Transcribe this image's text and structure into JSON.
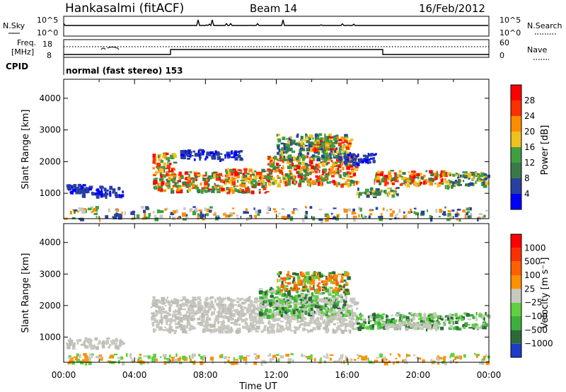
{
  "header": {
    "station": "Hankasalmi (fitACF)",
    "beam": "Beam 14",
    "date": "16/Feb/2012"
  },
  "strip": {
    "nsky_label": "N.Sky",
    "nsearch_label": "N.Search",
    "nsky_ticks": [
      "10^5",
      "10^0"
    ],
    "nsearch_ticks": [
      "10^5",
      "10^0"
    ],
    "freq_label_1": "Freq.",
    "freq_label_2": "[MHz]",
    "freq_ticks": [
      "18",
      "8"
    ],
    "nave_ticks": [
      "60",
      "0"
    ],
    "nave_label": "Nave",
    "cpid_label": "CPID",
    "cpid_text": "normal (fast stereo) 153"
  },
  "chart_data": [
    {
      "type": "heatmap",
      "name": "power",
      "ylabel": "Slant Range [km]",
      "xlabel": "",
      "ylim": [
        200,
        4600
      ],
      "yticks": [
        "1000",
        "2000",
        "3000",
        "4000"
      ],
      "colorbar": {
        "label": "Power [dB]",
        "ticks": [
          "4",
          "8",
          "12",
          "16",
          "20",
          "24",
          "28"
        ],
        "colors": [
          "#0000ff",
          "#2840a0",
          "#3a7a4a",
          "#40a040",
          "#f0c020",
          "#ff8c00",
          "#ff3000",
          "#ff0000"
        ]
      },
      "bands": [
        {
          "x0": 0.1,
          "x1": 1.2,
          "y0": 1050,
          "y1": 1300,
          "level": "low"
        },
        {
          "x0": 1.0,
          "x1": 3.3,
          "y0": 950,
          "y1": 1250,
          "level": "low"
        },
        {
          "x0": 5.0,
          "x1": 6.2,
          "y0": 1100,
          "y1": 2300,
          "level": "high"
        },
        {
          "x0": 6.0,
          "x1": 9.0,
          "y0": 1100,
          "y1": 1700,
          "level": "high"
        },
        {
          "x0": 9.0,
          "x1": 11.5,
          "y0": 1050,
          "y1": 1800,
          "level": "high"
        },
        {
          "x0": 11.5,
          "x1": 16.5,
          "y0": 1300,
          "y1": 2200,
          "level": "high"
        },
        {
          "x0": 12.0,
          "x1": 16.0,
          "y0": 2100,
          "y1": 2900,
          "level": "mid"
        },
        {
          "x0": 14.0,
          "x1": 16.2,
          "y0": 2400,
          "y1": 2800,
          "level": "high"
        },
        {
          "x0": 15.5,
          "x1": 17.6,
          "y0": 1950,
          "y1": 2300,
          "level": "low"
        },
        {
          "x0": 6.5,
          "x1": 10.0,
          "y0": 2100,
          "y1": 2400,
          "level": "low"
        },
        {
          "x0": 16.5,
          "x1": 19.0,
          "y0": 950,
          "y1": 1200,
          "level": "mid"
        },
        {
          "x0": 17.5,
          "x1": 21.5,
          "y0": 1300,
          "y1": 1750,
          "level": "high"
        },
        {
          "x0": 21.5,
          "x1": 23.9,
          "y0": 1200,
          "y1": 1700,
          "level": "mid"
        },
        {
          "x0": 0.0,
          "x1": 24.0,
          "y0": 200,
          "y1": 600,
          "level": "noise"
        }
      ]
    },
    {
      "type": "heatmap",
      "name": "velocity",
      "ylabel": "Slant Range [km]",
      "xlabel": "Time UT",
      "ylim": [
        200,
        4600
      ],
      "yticks": [
        "1000",
        "2000",
        "3000",
        "4000"
      ],
      "xticks": [
        "00:00",
        "04:00",
        "08:00",
        "12:00",
        "16:00",
        "20:00",
        "00:00"
      ],
      "xlim": [
        0,
        24
      ],
      "colorbar": {
        "label": "Velocity [m s⁻¹]",
        "ticks": [
          "1000",
          "500",
          "100",
          "25",
          "−25",
          "−100",
          "−500",
          "−1000"
        ],
        "colors": [
          "#1e3cc8",
          "#2a6a3a",
          "#3cb03c",
          "#60d040",
          "#c8c8c0",
          "#ff9000",
          "#ff6000",
          "#ff3000",
          "#ff0000"
        ]
      },
      "bands": [
        {
          "x0": 0.1,
          "x1": 3.3,
          "y0": 700,
          "y1": 1000,
          "level": "ground"
        },
        {
          "x0": 4.9,
          "x1": 16.5,
          "y0": 1200,
          "y1": 2300,
          "level": "ground"
        },
        {
          "x0": 11.0,
          "x1": 16.0,
          "y0": 1700,
          "y1": 2600,
          "level": "green"
        },
        {
          "x0": 12.0,
          "x1": 16.0,
          "y0": 2500,
          "y1": 3100,
          "level": "orange"
        },
        {
          "x0": 16.5,
          "x1": 23.9,
          "y0": 1300,
          "y1": 1800,
          "level": "green"
        },
        {
          "x0": 18.0,
          "x1": 21.0,
          "y0": 1300,
          "y1": 1500,
          "level": "ground"
        },
        {
          "x0": 0.0,
          "x1": 24.0,
          "y0": 200,
          "y1": 500,
          "level": "noise"
        }
      ]
    }
  ]
}
